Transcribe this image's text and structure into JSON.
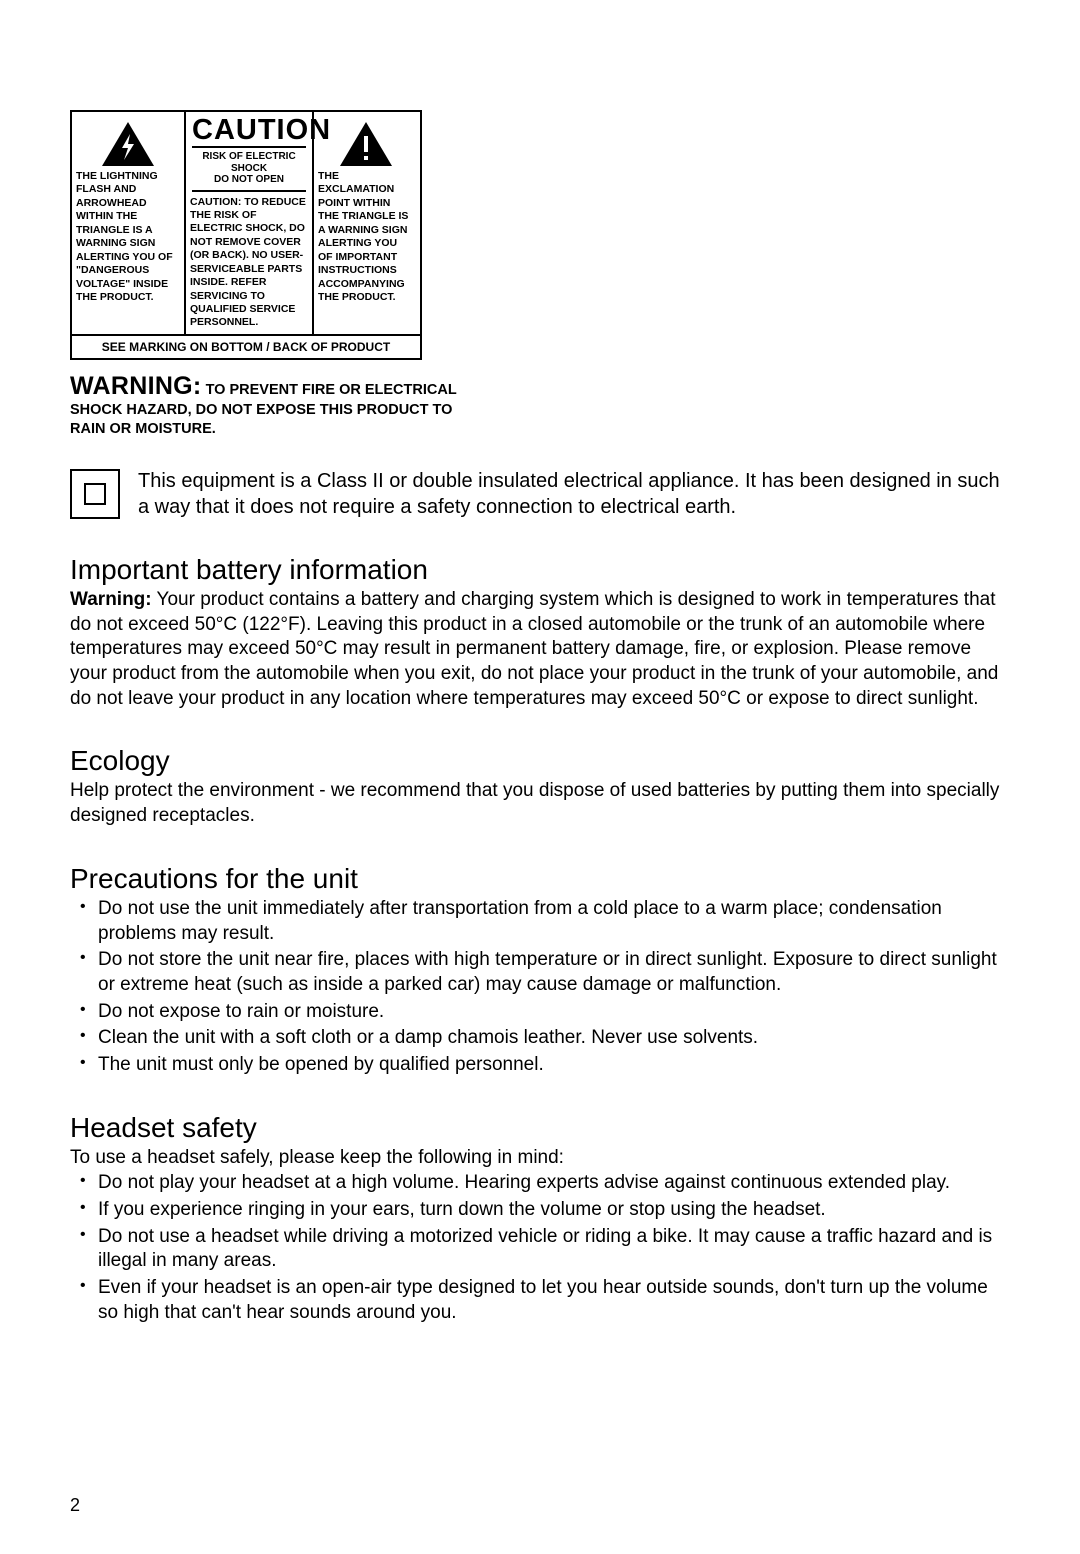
{
  "caution_box": {
    "title": "CAUTION",
    "subtitle": "RISK OF ELECTRIC SHOCK\nDO NOT OPEN",
    "left_text": "THE LIGHTNING FLASH AND ARROWHEAD WITHIN THE TRIANGLE IS A WARNING SIGN ALERTING YOU OF \"DANGEROUS VOLTAGE\" INSIDE THE PRODUCT.",
    "mid_text": "CAUTION: TO REDUCE THE RISK OF ELECTRIC SHOCK, DO NOT REMOVE COVER (OR BACK). NO USER-SERVICEABLE PARTS INSIDE. REFER SERVICING TO QUALIFIED SERVICE PERSONNEL.",
    "right_text": "THE EXCLAMATION POINT WITHIN THE TRIANGLE IS A WARNING SIGN ALERTING YOU OF IMPORTANT INSTRUCTIONS ACCOMPANYING THE PRODUCT.",
    "footer": "SEE MARKING ON BOTTOM / BACK OF PRODUCT",
    "triangle_fill": "#000000",
    "triangle_glyph_color": "#ffffff"
  },
  "warning": {
    "lead": "WARNING:",
    "rest": " TO PREVENT FIRE OR ELECTRICAL SHOCK HAZARD, DO NOT EXPOSE THIS PRODUCT TO RAIN OR MOISTURE."
  },
  "class2_text": "This equipment is a Class II or double insulated electrical appliance. It has been designed in such a way that it does not require a safety connection to electrical earth.",
  "battery": {
    "heading": "Important battery information",
    "lead": "Warning:",
    "text": " Your product contains a battery and charging system which is designed to work in temperatures that do not exceed 50°C (122°F). Leaving this product in a closed automobile or the trunk of an automobile where temperatures may exceed 50°C may result in permanent battery damage, fire, or explosion. Please remove your product from the automobile when you exit, do not place your product in the trunk of your automobile, and do not leave your product in any location where temperatures may exceed 50°C or expose to direct sunlight."
  },
  "ecology": {
    "heading": "Ecology",
    "text": "Help protect the environment - we recommend that you dispose of used batteries by putting them into specially designed receptacles."
  },
  "precautions": {
    "heading": "Precautions for the unit",
    "items": [
      "Do not use the unit immediately after transportation from a cold place to a warm place; condensation problems may result.",
      "Do not store the unit near fire, places with high temperature or in direct sunlight. Exposure to direct sunlight or extreme heat (such as inside a parked car) may cause damage or malfunction.",
      "Do not expose to rain or moisture.",
      "Clean the unit with a soft cloth or a damp chamois leather. Never use solvents.",
      "The unit must only be opened by qualified personnel."
    ]
  },
  "headset": {
    "heading": "Headset safety",
    "intro": "To use a headset safely, please keep the following in mind:",
    "items": [
      "Do not play your headset at a high volume. Hearing experts advise against continuous extended play.",
      "If you experience ringing in your ears, turn down the volume or stop using the headset.",
      "Do not use a headset while driving a motorized vehicle or riding a bike. It may cause a traffic hazard and is illegal in many areas.",
      "Even if your headset is an open-air type designed to let you hear outside sounds, don't turn up the volume so high that can't hear sounds around you."
    ]
  },
  "page_number": "2",
  "colors": {
    "text": "#000000",
    "background": "#ffffff"
  }
}
